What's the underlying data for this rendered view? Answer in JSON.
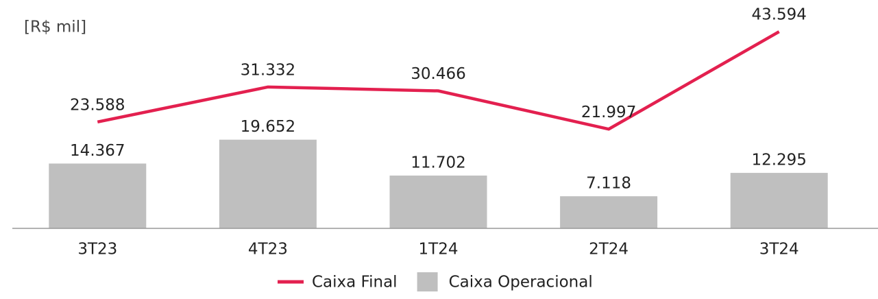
{
  "chart_data": {
    "type": "bar_line",
    "title": "[R$ mil]",
    "categories": [
      "3T23",
      "4T23",
      "1T24",
      "2T24",
      "3T24"
    ],
    "ylim": [
      0,
      50000
    ],
    "series": [
      {
        "name": "Caixa Final",
        "type": "line",
        "color": "#e3204f",
        "values": [
          23588,
          31332,
          30466,
          21997,
          43594
        ],
        "value_labels": [
          "23.588",
          "31.332",
          "30.466",
          "21.997",
          "43.594"
        ]
      },
      {
        "name": "Caixa Operacional",
        "type": "bar",
        "color": "#bfbfbf",
        "values": [
          14367,
          19652,
          11702,
          7118,
          12295
        ],
        "value_labels": [
          "14.367",
          "19.652",
          "11.702",
          "7.118",
          "12.295"
        ]
      }
    ]
  }
}
